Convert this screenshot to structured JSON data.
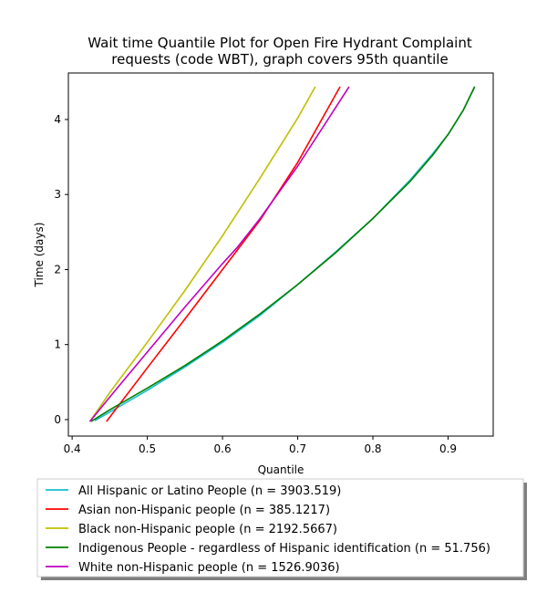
{
  "chart_data": {
    "type": "line",
    "title_lines": [
      "Wait time Quantile Plot for Open Fire Hydrant Complaint",
      "requests (code WBT), graph covers 95th quantile"
    ],
    "xlabel": "Quantile",
    "ylabel": "Time (days)",
    "xlim": [
      0.395,
      0.96
    ],
    "ylim": [
      -0.22,
      4.62
    ],
    "xticks": [
      0.4,
      0.5,
      0.6,
      0.7,
      0.8,
      0.9
    ],
    "xtick_labels": [
      "0.4",
      "0.5",
      "0.6",
      "0.7",
      "0.8",
      "0.9"
    ],
    "yticks": [
      0,
      1,
      2,
      3,
      4
    ],
    "ytick_labels": [
      "0",
      "1",
      "2",
      "3",
      "4"
    ],
    "grid": false,
    "legend_placement": "below-plot",
    "series": [
      {
        "name": "All Hispanic or Latino People (n = 3903.519)",
        "color": "#17becf",
        "x": [
          0.431,
          0.45,
          0.5,
          0.55,
          0.6,
          0.65,
          0.7,
          0.75,
          0.8,
          0.85,
          0.88,
          0.9,
          0.92,
          0.935
        ],
        "y": [
          -0.01,
          0.1,
          0.39,
          0.7,
          1.03,
          1.39,
          1.8,
          2.23,
          2.68,
          3.2,
          3.55,
          3.8,
          4.12,
          4.43
        ]
      },
      {
        "name": "Asian non-Hispanic people (n = 385.1217)",
        "color": "#ff0000",
        "x": [
          0.446,
          0.5,
          0.55,
          0.6,
          0.65,
          0.7,
          0.756
        ],
        "y": [
          -0.02,
          0.69,
          1.34,
          2.0,
          2.66,
          3.43,
          4.43
        ]
      },
      {
        "name": "Black non-Hispanic people (n = 2192.5667)",
        "color": "#bfbf00",
        "x": [
          0.424,
          0.45,
          0.5,
          0.55,
          0.6,
          0.65,
          0.7,
          0.723
        ],
        "y": [
          -0.02,
          0.36,
          1.03,
          1.72,
          2.45,
          3.22,
          4.02,
          4.43
        ]
      },
      {
        "name": "Indigenous People - regardless of Hispanic identification (n = 51.756)",
        "color": "#008000",
        "x": [
          0.426,
          0.45,
          0.5,
          0.55,
          0.6,
          0.65,
          0.7,
          0.75,
          0.8,
          0.85,
          0.88,
          0.9,
          0.92,
          0.935
        ],
        "y": [
          -0.02,
          0.13,
          0.42,
          0.72,
          1.05,
          1.41,
          1.8,
          2.22,
          2.68,
          3.18,
          3.53,
          3.8,
          4.12,
          4.43
        ]
      },
      {
        "name": "White non-Hispanic people (n = 1526.9036)",
        "color": "#bf00bf",
        "x": [
          0.424,
          0.45,
          0.5,
          0.55,
          0.6,
          0.62,
          0.65,
          0.7,
          0.768
        ],
        "y": [
          -0.02,
          0.3,
          0.9,
          1.5,
          2.08,
          2.3,
          2.68,
          3.38,
          4.43
        ]
      }
    ]
  }
}
